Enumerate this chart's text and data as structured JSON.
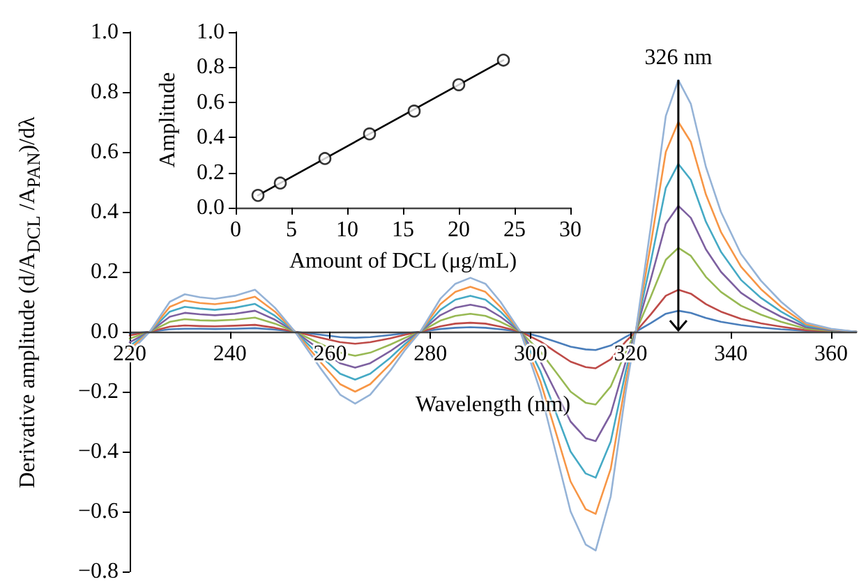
{
  "chart_data": [
    {
      "type": "line",
      "xlabel": "Wavelength (nm)",
      "ylabel": "Derivative amplitude (d/A$_{DCL}$ /A$_{PAN}$)/dλ",
      "marker": "none",
      "line_style": "solid",
      "grid": false,
      "x": [
        220,
        224,
        228,
        231,
        234,
        237,
        241,
        245,
        249,
        253,
        258,
        262,
        265,
        268,
        272,
        275,
        278,
        282,
        285,
        288,
        291,
        294,
        298,
        302,
        305,
        308,
        311,
        313,
        316,
        319,
        321,
        324,
        327,
        329.5,
        332,
        335,
        338,
        342,
        346,
        350,
        355,
        360,
        365
      ],
      "xlim": [
        220,
        365
      ],
      "xticks": [
        220,
        240,
        260,
        280,
        300,
        320,
        340,
        360
      ],
      "ylim": [
        -0.8,
        1.0
      ],
      "yticks": [
        {
          "value": -0.8,
          "label": "−0.8"
        },
        {
          "value": -0.6,
          "label": "−0.6"
        },
        {
          "value": -0.4,
          "label": "−0.4"
        },
        {
          "value": -0.2,
          "label": "−0.2"
        },
        {
          "value": 0,
          "label": "0.0"
        },
        {
          "value": 0.2,
          "label": "0.2"
        },
        {
          "value": 0.4,
          "label": "0.4"
        },
        {
          "value": 0.6,
          "label": "0.6"
        },
        {
          "value": 0.8,
          "label": "0.8"
        },
        {
          "value": 1.0,
          "label": "1.0"
        }
      ],
      "annotations": [
        {
          "text": "326 nm",
          "x": 329.5,
          "y": 0.84
        }
      ],
      "series": [
        {
          "color": "#4a7ebb",
          "values": [
            -0.006,
            0,
            0.008,
            0.01,
            0.01,
            0.009,
            0.01,
            0.012,
            0.007,
            0,
            -0.01,
            -0.018,
            -0.02,
            -0.018,
            -0.011,
            -0.005,
            0,
            0.009,
            0.013,
            0.015,
            0.013,
            0.008,
            0,
            -0.017,
            -0.033,
            -0.05,
            -0.059,
            -0.061,
            -0.046,
            -0.017,
            0,
            0.029,
            0.06,
            0.07,
            0.063,
            0.046,
            0.033,
            0.022,
            0.014,
            0.008,
            0.003,
            0.001,
            0
          ]
        },
        {
          "color": "#be4b48",
          "values": [
            -0.012,
            0,
            0.017,
            0.021,
            0.019,
            0.018,
            0.02,
            0.023,
            0.013,
            0,
            -0.02,
            -0.035,
            -0.04,
            -0.035,
            -0.022,
            -0.01,
            0,
            0.018,
            0.027,
            0.03,
            0.027,
            0.017,
            0,
            -0.033,
            -0.067,
            -0.1,
            -0.118,
            -0.122,
            -0.092,
            -0.033,
            0,
            0.058,
            0.12,
            0.14,
            0.127,
            0.092,
            0.067,
            0.043,
            0.028,
            0.017,
            0.005,
            0.002,
            0
          ]
        },
        {
          "color": "#98b954",
          "values": [
            -0.023,
            0,
            0.033,
            0.042,
            0.038,
            0.037,
            0.04,
            0.047,
            0.027,
            0,
            -0.04,
            -0.07,
            -0.08,
            -0.07,
            -0.043,
            -0.02,
            0,
            0.037,
            0.053,
            0.06,
            0.053,
            0.033,
            0,
            -0.067,
            -0.133,
            -0.2,
            -0.237,
            -0.243,
            -0.183,
            -0.067,
            0,
            0.117,
            0.24,
            0.28,
            0.253,
            0.183,
            0.133,
            0.087,
            0.057,
            0.033,
            0.01,
            0.003,
            0
          ]
        },
        {
          "color": "#7d60a0",
          "values": [
            -0.035,
            0,
            0.05,
            0.063,
            0.058,
            0.055,
            0.06,
            0.07,
            0.04,
            0,
            -0.06,
            -0.105,
            -0.12,
            -0.105,
            -0.065,
            -0.03,
            0,
            0.055,
            0.08,
            0.09,
            0.08,
            0.05,
            0,
            -0.1,
            -0.2,
            -0.3,
            -0.355,
            -0.365,
            -0.275,
            -0.1,
            0,
            0.175,
            0.36,
            0.42,
            0.38,
            0.275,
            0.2,
            0.13,
            0.085,
            0.05,
            0.015,
            0.005,
            0
          ]
        },
        {
          "color": "#46aac5",
          "values": [
            -0.047,
            0,
            0.067,
            0.083,
            0.077,
            0.073,
            0.08,
            0.093,
            0.053,
            0,
            -0.08,
            -0.14,
            -0.16,
            -0.14,
            -0.087,
            -0.04,
            0,
            0.073,
            0.107,
            0.12,
            0.107,
            0.067,
            0,
            -0.133,
            -0.267,
            -0.4,
            -0.473,
            -0.487,
            -0.367,
            -0.133,
            0,
            0.233,
            0.48,
            0.56,
            0.507,
            0.367,
            0.267,
            0.173,
            0.113,
            0.067,
            0.02,
            0.007,
            0
          ]
        },
        {
          "color": "#f79646",
          "values": [
            -0.058,
            0,
            0.083,
            0.104,
            0.096,
            0.092,
            0.1,
            0.117,
            0.067,
            0,
            -0.1,
            -0.175,
            -0.2,
            -0.175,
            -0.108,
            -0.05,
            0,
            0.092,
            0.133,
            0.15,
            0.133,
            0.083,
            0,
            -0.167,
            -0.333,
            -0.5,
            -0.592,
            -0.608,
            -0.458,
            -0.167,
            0,
            0.292,
            0.6,
            0.7,
            0.633,
            0.458,
            0.333,
            0.217,
            0.142,
            0.083,
            0.025,
            0.008,
            0
          ]
        },
        {
          "color": "#95b3d7",
          "values": [
            -0.07,
            0,
            0.1,
            0.125,
            0.115,
            0.11,
            0.12,
            0.14,
            0.08,
            0,
            -0.12,
            -0.21,
            -0.24,
            -0.21,
            -0.13,
            -0.06,
            0,
            0.11,
            0.16,
            0.18,
            0.16,
            0.1,
            0,
            -0.2,
            -0.4,
            -0.6,
            -0.71,
            -0.73,
            -0.55,
            -0.2,
            0,
            0.35,
            0.72,
            0.84,
            0.76,
            0.55,
            0.4,
            0.26,
            0.17,
            0.1,
            0.03,
            0.01,
            0
          ]
        }
      ]
    },
    {
      "type": "scatter",
      "xlabel": "Amount of DCL (μg/mL)",
      "ylabel": "Amplitude",
      "marker": "circle",
      "grid": false,
      "xlim": [
        0,
        30
      ],
      "xticks": [
        0,
        5,
        10,
        15,
        20,
        25,
        30
      ],
      "ylim": [
        0,
        1.0
      ],
      "yticks": [
        {
          "value": 0,
          "label": "0.0"
        },
        {
          "value": 0.2,
          "label": "0.2"
        },
        {
          "value": 0.4,
          "label": "0.4"
        },
        {
          "value": 0.6,
          "label": "0.6"
        },
        {
          "value": 0.8,
          "label": "0.8"
        },
        {
          "value": 1.0,
          "label": "1.0"
        }
      ],
      "series": [
        {
          "type": "scatter",
          "color": "#000000",
          "x": [
            2,
            4,
            8,
            12,
            16,
            20,
            24
          ],
          "values": [
            0.07,
            0.14,
            0.28,
            0.42,
            0.55,
            0.7,
            0.84
          ]
        },
        {
          "type": "line",
          "color": "#000000",
          "marker": "none",
          "x": [
            2,
            24
          ],
          "values": [
            0.07,
            0.84
          ]
        }
      ]
    }
  ]
}
